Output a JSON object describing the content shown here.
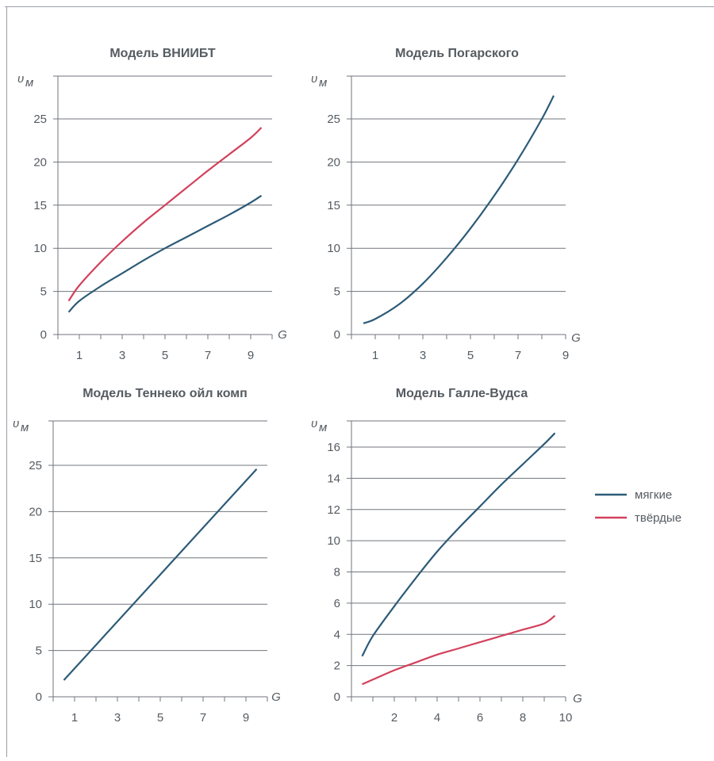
{
  "legend": [
    {
      "label": "мягкие",
      "color": "#2d5b78"
    },
    {
      "label": "твёрдые",
      "color": "#d2415c"
    }
  ],
  "chart_data": [
    {
      "type": "line",
      "title": "Модель ВНИИБТ",
      "ylabel": "υм",
      "xlabel": "G",
      "xlim": [
        0,
        10
      ],
      "ylim": [
        0,
        25
      ],
      "yticks": [
        0,
        5,
        10,
        15,
        20,
        25
      ],
      "xticks": [
        1,
        3,
        5,
        7,
        9
      ],
      "grid": true,
      "series": [
        {
          "name": "мягкие",
          "color": "#2d5b78",
          "x": [
            0.5,
            1,
            2,
            3,
            4,
            5,
            6,
            7,
            8,
            9,
            9.5
          ],
          "y": [
            2.6,
            3.9,
            5.6,
            7.1,
            8.6,
            10.0,
            11.3,
            12.6,
            13.9,
            15.3,
            16.1
          ]
        },
        {
          "name": "твёрдые",
          "color": "#d2415c",
          "x": [
            0.5,
            1,
            2,
            3,
            4,
            5,
            6,
            7,
            8,
            9,
            9.5
          ],
          "y": [
            3.9,
            5.7,
            8.4,
            10.8,
            13.0,
            15.0,
            17.0,
            19.0,
            20.9,
            22.8,
            24.0
          ]
        }
      ]
    },
    {
      "type": "line",
      "title": "Модель Погарского",
      "ylabel": "υм",
      "xlabel": "G",
      "xlim": [
        0,
        9
      ],
      "ylim": [
        0,
        25
      ],
      "yticks": [
        0,
        5,
        10,
        15,
        20,
        25
      ],
      "xticks": [
        1,
        3,
        5,
        7,
        9
      ],
      "grid": true,
      "series": [
        {
          "name": "мягкие",
          "color": "#2d5b78",
          "x": [
            0.5,
            1,
            2,
            3,
            4,
            5,
            6,
            7,
            8,
            8.5
          ],
          "y": [
            1.3,
            1.8,
            3.5,
            5.9,
            8.9,
            12.3,
            16.1,
            20.3,
            25.0,
            27.7
          ]
        }
      ]
    },
    {
      "type": "line",
      "title": "Модель Теннеко ойл комп",
      "ylabel": "υм",
      "xlabel": "G",
      "xlim": [
        0,
        10
      ],
      "ylim": [
        0,
        25
      ],
      "yticks": [
        0,
        5,
        10,
        15,
        20,
        25
      ],
      "xticks": [
        1,
        3,
        5,
        7,
        9
      ],
      "grid": true,
      "series": [
        {
          "name": "мягкие",
          "color": "#2d5b78",
          "x": [
            0.5,
            9.5
          ],
          "y": [
            1.8,
            24.6
          ]
        }
      ]
    },
    {
      "type": "line",
      "title": "Модель Галле-Вудса",
      "ylabel": "υм",
      "xlabel": "G",
      "xlim": [
        0,
        10
      ],
      "ylim": [
        0,
        16
      ],
      "yticks": [
        0,
        2,
        4,
        6,
        8,
        10,
        12,
        14,
        16
      ],
      "xticks": [
        2,
        4,
        6,
        8,
        10
      ],
      "grid": true,
      "series": [
        {
          "name": "мягкие",
          "color": "#2d5b78",
          "x": [
            0.5,
            1,
            2,
            3,
            4,
            5,
            6,
            7,
            8,
            9,
            9.5
          ],
          "y": [
            2.6,
            3.9,
            5.8,
            7.6,
            9.3,
            10.8,
            12.2,
            13.6,
            14.9,
            16.2,
            16.9
          ]
        },
        {
          "name": "твёрдые",
          "color": "#d2415c",
          "x": [
            0.5,
            1,
            2,
            3,
            4,
            5,
            6,
            7,
            8,
            9,
            9.5
          ],
          "y": [
            0.8,
            1.1,
            1.7,
            2.2,
            2.7,
            3.1,
            3.5,
            3.9,
            4.3,
            4.7,
            5.2
          ]
        }
      ]
    }
  ]
}
